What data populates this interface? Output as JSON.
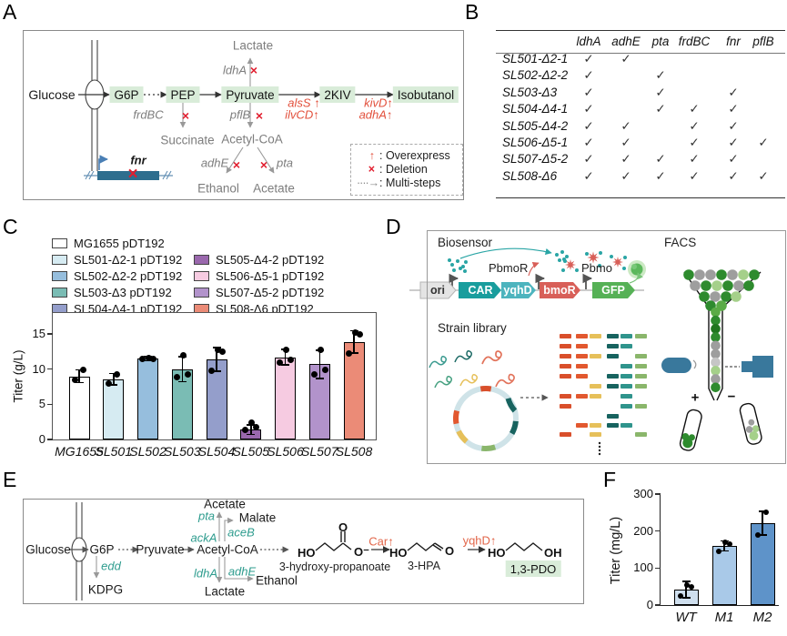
{
  "palette": {
    "green_box": "#d9ecd9",
    "accent_red": "#e11d2e",
    "gene_up_red": "#e2503c",
    "salmon": "#e2664a",
    "teal_gene": "#2e9c8e",
    "gray_text": "#7d7d7d",
    "fnr_bar": "#2e6e8e",
    "facs_blue": "#39789c",
    "facs_dots": {
      "g": "#2e8b2e",
      "m": "#5aab46",
      "d": "#20761f",
      "l": "#a5d08a",
      "y": "#9e9e9e",
      "c": "#c6c6c6"
    }
  },
  "a": {
    "label": "A",
    "nodes": {
      "glucose": "Glucose",
      "g6p": "G6P",
      "pep": "PEP",
      "pyruvate": "Pyruvate",
      "kiv": "2KIV",
      "isobutanol": "Isobutanol",
      "lactate": "Lactate",
      "succinate": "Succinate",
      "acetyl_coa": "Acetyl-CoA",
      "ethanol": "Ethanol",
      "acetate": "Acetate"
    },
    "genes": {
      "ldhA": "ldhA",
      "frdBC": "frdBC",
      "pflB": "pflB",
      "adhE": "adhE",
      "pta": "pta",
      "fnr": "fnr",
      "alsS": "alsS ↑",
      "ilvCD": "ilvCD↑",
      "kivD": "kivD↑",
      "adhA": "adhA↑"
    },
    "x_mark": "×",
    "legend": [
      {
        "symbol": "↑",
        "text": ": Overexpress"
      },
      {
        "symbol": "×",
        "text": ": Deletion"
      },
      {
        "symbol": "····→",
        "text": ": Multi-steps"
      }
    ]
  },
  "b": {
    "label": "B",
    "check": "✓",
    "columns": [
      "ldhA",
      "adhE",
      "pta",
      "frdBC",
      "fnr",
      "pflB"
    ],
    "rows": [
      {
        "name": "SL501-Δ2-1",
        "checks": [
          1,
          1,
          0,
          0,
          0,
          0
        ]
      },
      {
        "name": "SL502-Δ2-2",
        "checks": [
          1,
          0,
          1,
          0,
          0,
          0
        ]
      },
      {
        "name": "SL503-Δ3",
        "checks": [
          1,
          0,
          1,
          0,
          1,
          0
        ]
      },
      {
        "name": "SL504-Δ4-1",
        "checks": [
          1,
          0,
          1,
          1,
          1,
          0
        ]
      },
      {
        "name": "SL505-Δ4-2",
        "checks": [
          1,
          1,
          0,
          1,
          1,
          0
        ]
      },
      {
        "name": "SL506-Δ5-1",
        "checks": [
          1,
          1,
          0,
          1,
          1,
          1
        ]
      },
      {
        "name": "SL507-Δ5-2",
        "checks": [
          1,
          1,
          1,
          1,
          1,
          0
        ]
      },
      {
        "name": "SL508-Δ6",
        "checks": [
          1,
          1,
          1,
          1,
          1,
          1
        ]
      }
    ]
  },
  "c": {
    "label": "C",
    "legend": [
      {
        "label": "MG1655 pDT192",
        "color": "#ffffff"
      },
      {
        "label": "SL501-Δ2-1 pDT192",
        "color": "#d6ebf2"
      },
      {
        "label": "SL502-Δ2-2 pDT192",
        "color": "#96bedd"
      },
      {
        "label": "SL503-Δ3 pDT192",
        "color": "#7abcb4"
      },
      {
        "label": "SL504-Δ4-1 pDT192",
        "color": "#949ecb"
      },
      {
        "label": "SL505-Δ4-2 pDT192",
        "color": "#9a68ad"
      },
      {
        "label": "SL506-Δ5-1 pDT192",
        "color": "#f6cbe1"
      },
      {
        "label": "SL507-Δ5-2 pDT192",
        "color": "#b293cb"
      },
      {
        "label": "SL508-Δ6 pDT192",
        "color": "#eb8b77"
      }
    ]
  },
  "chart_data": [
    {
      "type": "bar",
      "panel": "C",
      "ylabel": "Titer (g/L)",
      "ylim": [
        0,
        18
      ],
      "yticks": [
        0,
        5,
        10,
        15
      ],
      "categories": [
        "MG1655",
        "SL501",
        "SL502",
        "SL503",
        "SL504",
        "SL505",
        "SL506",
        "SL507",
        "SL508"
      ],
      "values": [
        9.0,
        8.6,
        11.5,
        10.0,
        11.4,
        1.4,
        11.7,
        10.7,
        13.9
      ],
      "errors": [
        0.9,
        0.8,
        0.3,
        1.8,
        1.7,
        0.7,
        1.1,
        2.0,
        1.6
      ],
      "points": [
        [
          8.5,
          9.9
        ],
        [
          8.0,
          9.3
        ],
        [
          11.4,
          11.5,
          11.6
        ],
        [
          8.9,
          9.3,
          12.0
        ],
        [
          9.8,
          12.5,
          12.8
        ],
        [
          1.4,
          1.7,
          2.4
        ],
        [
          11.0,
          11.3,
          12.8
        ],
        [
          9.2,
          9.9,
          12.8
        ],
        [
          12.2,
          15.0,
          15.2
        ]
      ],
      "colors": [
        "#ffffff",
        "#d6ebf2",
        "#96bedd",
        "#7abcb4",
        "#949ecb",
        "#9a68ad",
        "#f6cbe1",
        "#b293cb",
        "#eb8b77"
      ],
      "frame": "box",
      "grid": false,
      "legend_position": "top-left"
    },
    {
      "type": "bar",
      "panel": "F",
      "ylabel": "Titer (mg/L)",
      "ylim": [
        0,
        300
      ],
      "yticks": [
        0,
        100,
        200,
        300
      ],
      "categories": [
        "WT",
        "M1",
        "M2"
      ],
      "values": [
        42,
        160,
        221
      ],
      "errors": [
        22,
        14,
        32
      ],
      "points": [
        [
          24,
          50,
          55
        ],
        [
          145,
          166,
          170
        ],
        [
          190,
          250
        ]
      ],
      "colors": [
        "#cfdfee",
        "#a9c9e8",
        "#5e93c9"
      ],
      "frame": "axes",
      "grid": false
    }
  ],
  "d": {
    "label": "D",
    "biosensor": "Biosensor",
    "facs": "FACS",
    "strain_library": "Strain library",
    "cassette": [
      {
        "label": "ori",
        "color": "#e4e4e4",
        "text_color": "#333333"
      },
      {
        "label": "CAR",
        "color": "#199d9d",
        "text_color": "#ffffff"
      },
      {
        "label": "yqhD",
        "color": "#4db4be",
        "text_color": "#ffffff"
      },
      {
        "label": "bmoR",
        "color": "#d85f58",
        "text_color": "#ffffff"
      },
      {
        "label": "GFP",
        "color": "#56b156",
        "text_color": "#ffffff"
      }
    ],
    "pbmoR": "PbmoR",
    "pbmo": "Pbmo",
    "plus": "+",
    "minus": "−",
    "library_colors": [
      "#d94f2b",
      "#e2582f",
      "#e6c05a",
      "#17635f",
      "#2f948c",
      "#8ab66b"
    ],
    "library_grid": [
      [
        1,
        1,
        1,
        1,
        1,
        1
      ],
      [
        1,
        1,
        0,
        1,
        1,
        0
      ],
      [
        1,
        1,
        1,
        1,
        0,
        1
      ],
      [
        1,
        1,
        0,
        0,
        1,
        1
      ],
      [
        1,
        1,
        0,
        1,
        1,
        1
      ],
      [
        0,
        0,
        1,
        1,
        1,
        1
      ],
      [
        1,
        1,
        1,
        0,
        1,
        0
      ],
      [
        1,
        0,
        0,
        0,
        1,
        1
      ],
      [
        0,
        0,
        0,
        1,
        0,
        0
      ],
      [
        0,
        1,
        1,
        1,
        1,
        0
      ],
      [
        1,
        0,
        1,
        0,
        0,
        1
      ]
    ],
    "funnel_rows": [
      "gyygylg",
      "yglgyg",
      "gygl",
      "gm"
    ],
    "channel": "mgdgyyclyg",
    "tube_left": "ggg",
    "tube_right": "llyy"
  },
  "e": {
    "label": "E",
    "nodes": {
      "glucose": "Glucose",
      "g6p": "G6P",
      "pyruvate": "Pryuvate",
      "acetyl_coa": "Acetyl-CoA",
      "kdpg": "KDPG",
      "acetate": "Acetate",
      "malate": "Malate",
      "lactate": "Lactate",
      "ethanol": "Ethanol"
    },
    "genes": {
      "edd": "edd",
      "pta": "pta",
      "aceB": "aceB",
      "ackA": "ackA",
      "ldhA": "ldhA",
      "adhE": "adhE"
    },
    "overexpressed": {
      "car": "Car↑",
      "yqhD": "yqhD↑"
    },
    "molecules": {
      "m1_name": "3-hydroxy-propanoate",
      "m2_name": "3-HPA",
      "m3_name": "1,3-PDO",
      "ho": "HO",
      "o": "O",
      "o_minus": "O⁻",
      "oh": "OH"
    }
  },
  "f": {
    "label": "F"
  }
}
